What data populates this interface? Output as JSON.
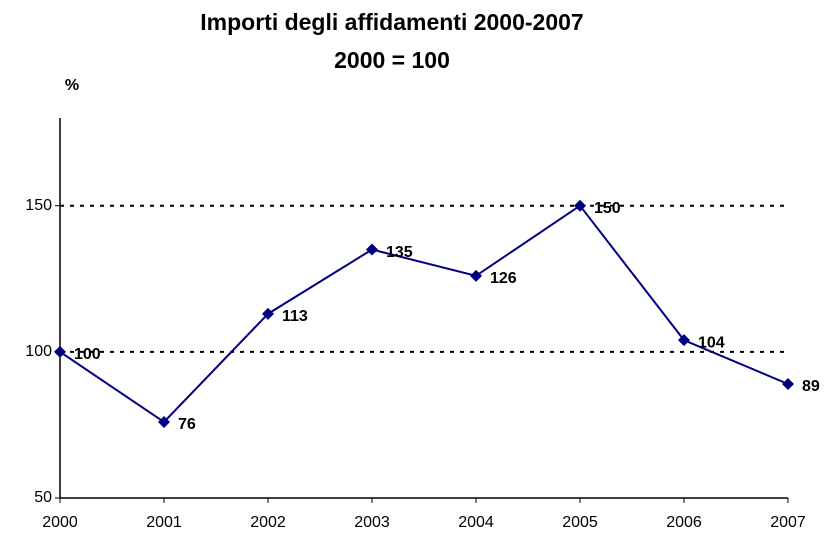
{
  "chart_data": {
    "type": "line",
    "title": "Importi degli affidamenti 2000-2007",
    "subtitle": "2000 = 100",
    "y_label": "%",
    "categories": [
      "2000",
      "2001",
      "2002",
      "2003",
      "2004",
      "2005",
      "2006",
      "2007"
    ],
    "values": [
      100,
      76,
      113,
      135,
      126,
      150,
      104,
      89
    ],
    "color": "#000080",
    "ylim": [
      50,
      180
    ],
    "yticks": [
      50,
      100,
      150
    ],
    "grid": true
  }
}
